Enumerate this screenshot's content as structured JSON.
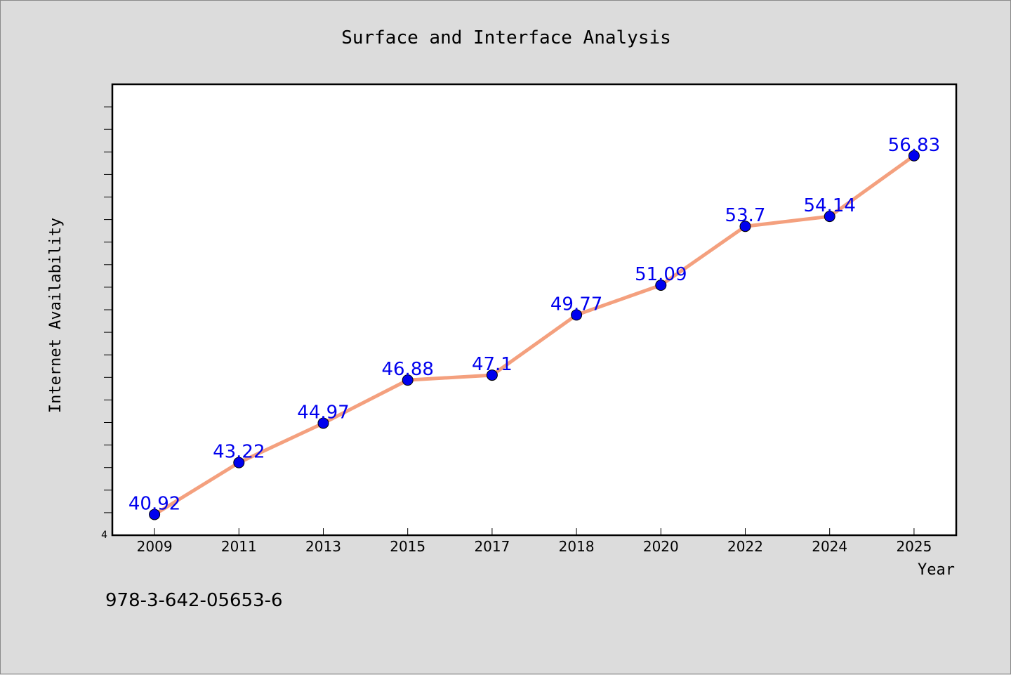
{
  "chart_data": {
    "type": "line",
    "title": "Surface and Interface Analysis",
    "xlabel": "Year",
    "ylabel": "Internet Availability",
    "categories": [
      "2009",
      "2011",
      "2013",
      "2015",
      "2017",
      "2018",
      "2020",
      "2022",
      "2024",
      "2025"
    ],
    "values": [
      40.92,
      43.22,
      44.97,
      46.88,
      47.1,
      49.77,
      51.09,
      53.7,
      54.14,
      56.83
    ],
    "ylim": [
      40,
      60
    ],
    "y_tick_labels": [
      "4"
    ],
    "grid": false,
    "legend": "none",
    "line_color": "#f4a07e",
    "marker_color": "#0000ee",
    "label_color": "#0000ee"
  },
  "footer_code": "978-3-642-05653-6"
}
